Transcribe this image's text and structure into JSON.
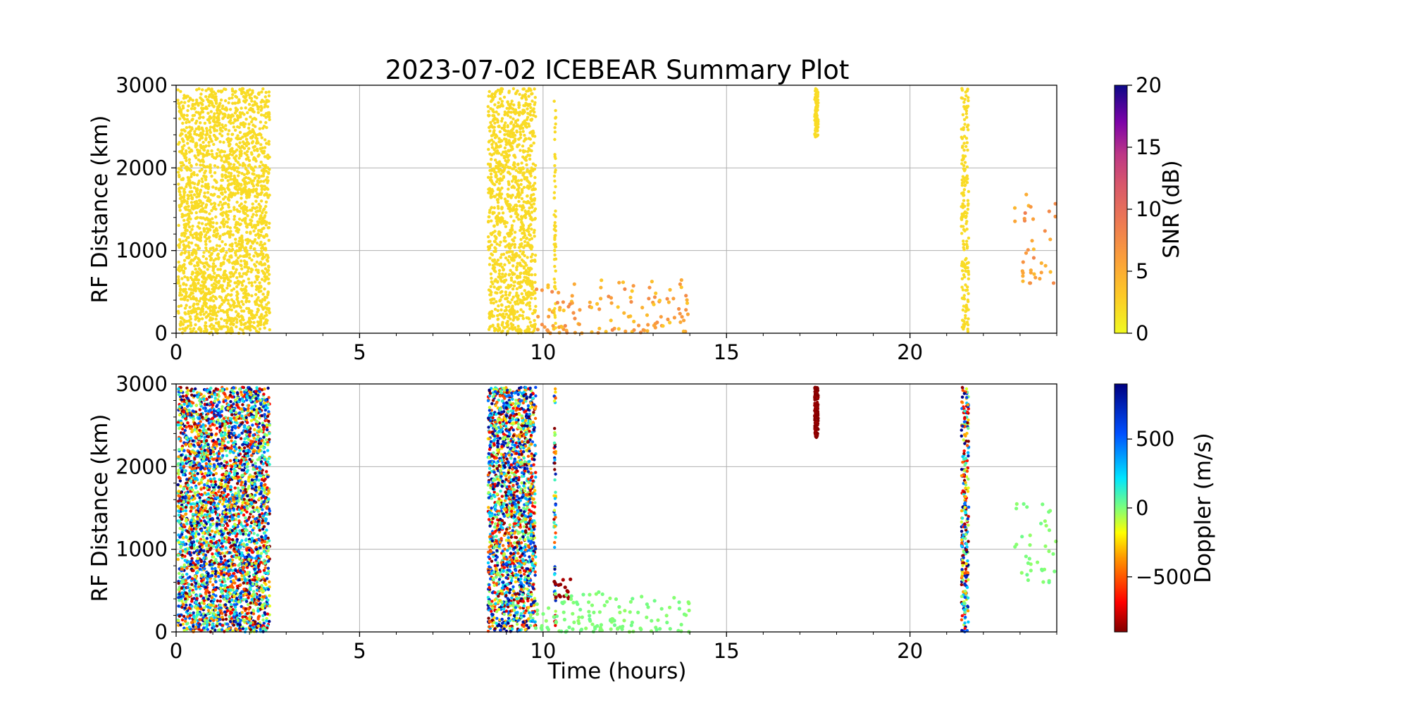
{
  "chart_data": [
    {
      "type": "scatter",
      "title": "2023-07-02 ICEBEAR Summary Plot",
      "xlabel": "",
      "ylabel": "RF Distance (km)",
      "xlim": [
        0,
        24
      ],
      "ylim": [
        0,
        3000
      ],
      "xticks": [
        "0",
        "5",
        "10",
        "15",
        "20"
      ],
      "yticks": [
        "0",
        "1000",
        "2000",
        "3000"
      ],
      "grid": true,
      "color_variable": "SNR (dB)",
      "colorbar": {
        "label": "SNR (dB)",
        "range": [
          0,
          20
        ],
        "ticks": [
          "0",
          "5",
          "10",
          "15",
          "20"
        ],
        "colormap": "plasma_r"
      },
      "data_regions": [
        {
          "x_range": [
            0.05,
            2.55
          ],
          "y_range": [
            0,
            2960
          ],
          "density": "dense",
          "value": 0.5
        },
        {
          "x_range": [
            8.5,
            9.8
          ],
          "y_range": [
            0,
            2960
          ],
          "density": "dense",
          "value": 0.6
        },
        {
          "x_range": [
            10.3,
            10.35
          ],
          "y_range": [
            0,
            2960
          ],
          "density": "dense",
          "value": 0.6
        },
        {
          "x_range": [
            9.8,
            14.0
          ],
          "y_range": [
            0,
            650
          ],
          "density": "sparse",
          "value": 3.0
        },
        {
          "x_range": [
            17.4,
            17.5
          ],
          "y_range": [
            2350,
            2960
          ],
          "density": "dense",
          "value": 0.5
        },
        {
          "x_range": [
            21.4,
            21.6
          ],
          "y_range": [
            0,
            2960
          ],
          "density": "dense",
          "value": 0.5
        },
        {
          "x_range": [
            22.8,
            24.0
          ],
          "y_range": [
            600,
            1700
          ],
          "density": "sparse",
          "value": 4.0
        }
      ]
    },
    {
      "type": "scatter",
      "title": "",
      "xlabel": "Time (hours)",
      "ylabel": "RF Distance (km)",
      "xlim": [
        0,
        24
      ],
      "ylim": [
        0,
        3000
      ],
      "xticks": [
        "0",
        "5",
        "10",
        "15",
        "20"
      ],
      "yticks": [
        "0",
        "1000",
        "2000",
        "3000"
      ],
      "grid": true,
      "color_variable": "Doppler (m/s)",
      "colorbar": {
        "label": "Doppler (m/s)",
        "range": [
          -900,
          900
        ],
        "ticks": [
          "−500",
          "0",
          "500"
        ],
        "tick_values": [
          -500,
          0,
          500
        ],
        "colormap": "jet_r"
      },
      "data_regions": [
        {
          "x_range": [
            0.05,
            2.55
          ],
          "y_range": [
            0,
            2960
          ],
          "density": "dense",
          "value": "mixed"
        },
        {
          "x_range": [
            8.5,
            9.8
          ],
          "y_range": [
            0,
            2960
          ],
          "density": "dense",
          "value": "mixed"
        },
        {
          "x_range": [
            10.3,
            10.35
          ],
          "y_range": [
            0,
            2960
          ],
          "density": "dense",
          "value": "mixed"
        },
        {
          "x_range": [
            10.3,
            10.8
          ],
          "y_range": [
            400,
            650
          ],
          "density": "sparse",
          "value": -850
        },
        {
          "x_range": [
            9.8,
            14.0
          ],
          "y_range": [
            0,
            500
          ],
          "density": "sparse",
          "value": 0
        },
        {
          "x_range": [
            17.4,
            17.5
          ],
          "y_range": [
            2350,
            2960
          ],
          "density": "dense",
          "value": -880
        },
        {
          "x_range": [
            21.4,
            21.6
          ],
          "y_range": [
            0,
            2960
          ],
          "density": "dense",
          "value": "mixed"
        },
        {
          "x_range": [
            22.8,
            24.0
          ],
          "y_range": [
            600,
            1700
          ],
          "density": "sparse",
          "value": 0
        }
      ]
    }
  ]
}
